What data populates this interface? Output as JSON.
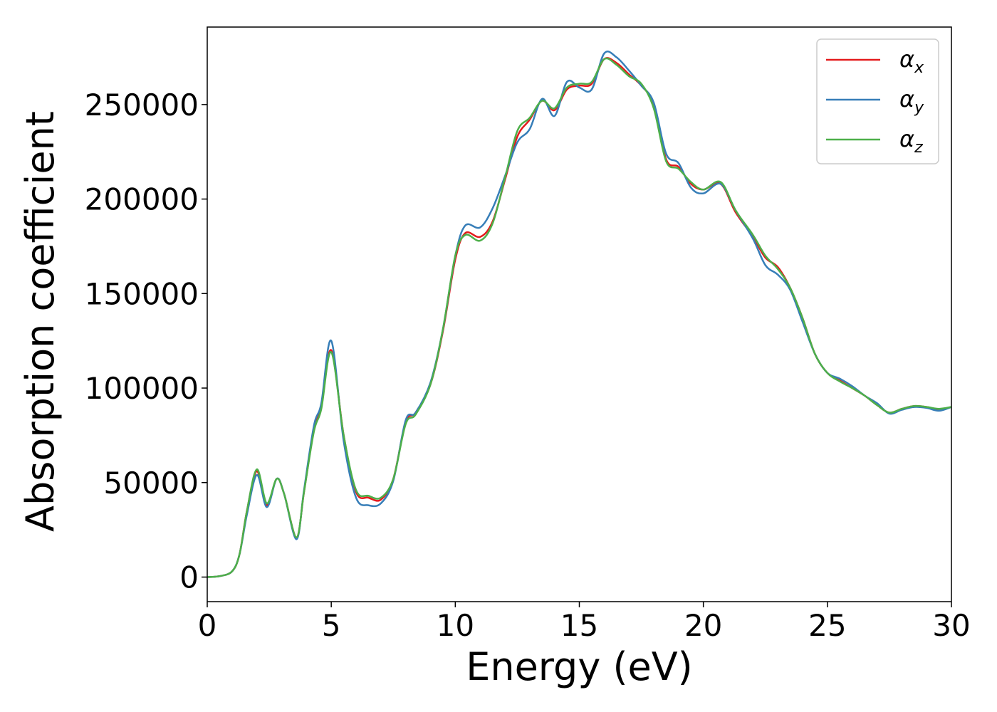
{
  "chart_data": {
    "type": "line",
    "title": "",
    "xlabel": "Energy (eV)",
    "ylabel": "Absorption coefficient",
    "xlim": [
      0,
      30
    ],
    "ylim": [
      -13000,
      291000
    ],
    "xticks": [
      0,
      5,
      10,
      15,
      20,
      25,
      30
    ],
    "xtick_labels": [
      "0",
      "5",
      "10",
      "15",
      "20",
      "25",
      "30"
    ],
    "yticks": [
      0,
      50000,
      100000,
      150000,
      200000,
      250000
    ],
    "ytick_labels": [
      "0",
      "50000",
      "100000",
      "150000",
      "200000",
      "250000"
    ],
    "grid": false,
    "legend_position": "top-right",
    "series": [
      {
        "name": "αx",
        "symbol": "α",
        "subscript": "x",
        "color": "#e41a1c",
        "points": [
          [
            0,
            0
          ],
          [
            0.5,
            500
          ],
          [
            1,
            3000
          ],
          [
            1.3,
            12000
          ],
          [
            1.6,
            35000
          ],
          [
            2,
            56000
          ],
          [
            2.4,
            38000
          ],
          [
            2.8,
            52000
          ],
          [
            3.1,
            44000
          ],
          [
            3.6,
            21000
          ],
          [
            3.9,
            45000
          ],
          [
            4.3,
            78000
          ],
          [
            4.6,
            90000
          ],
          [
            5,
            120000
          ],
          [
            5.5,
            75000
          ],
          [
            6,
            45000
          ],
          [
            6.5,
            42000
          ],
          [
            7,
            41000
          ],
          [
            7.5,
            52000
          ],
          [
            8,
            82000
          ],
          [
            8.4,
            87000
          ],
          [
            9,
            102000
          ],
          [
            9.5,
            130000
          ],
          [
            10,
            168000
          ],
          [
            10.4,
            182000
          ],
          [
            11,
            180000
          ],
          [
            11.5,
            188000
          ],
          [
            12,
            210000
          ],
          [
            12.5,
            233000
          ],
          [
            13,
            242000
          ],
          [
            13.5,
            252000
          ],
          [
            14,
            247000
          ],
          [
            14.5,
            258000
          ],
          [
            15,
            260000
          ],
          [
            15.5,
            261000
          ],
          [
            16,
            274000
          ],
          [
            16.5,
            272000
          ],
          [
            17,
            266000
          ],
          [
            17.5,
            260000
          ],
          [
            18,
            250000
          ],
          [
            18.5,
            221000
          ],
          [
            19,
            217000
          ],
          [
            19.5,
            208000
          ],
          [
            20,
            205000
          ],
          [
            20.7,
            208000
          ],
          [
            21.3,
            193000
          ],
          [
            22,
            180000
          ],
          [
            22.5,
            169000
          ],
          [
            23,
            164000
          ],
          [
            23.5,
            153000
          ],
          [
            24,
            137000
          ],
          [
            24.5,
            118000
          ],
          [
            25,
            108000
          ],
          [
            25.5,
            104000
          ],
          [
            26,
            100000
          ],
          [
            26.5,
            96000
          ],
          [
            27,
            91000
          ],
          [
            27.5,
            87000
          ],
          [
            28,
            89000
          ],
          [
            28.5,
            90500
          ],
          [
            29,
            90000
          ],
          [
            29.5,
            88500
          ],
          [
            30,
            90000
          ]
        ]
      },
      {
        "name": "αy",
        "symbol": "α",
        "subscript": "y",
        "color": "#377eb8",
        "points": [
          [
            0,
            0
          ],
          [
            0.5,
            500
          ],
          [
            1,
            3000
          ],
          [
            1.3,
            12000
          ],
          [
            1.6,
            33000
          ],
          [
            2,
            54000
          ],
          [
            2.4,
            37000
          ],
          [
            2.8,
            52000
          ],
          [
            3.1,
            44000
          ],
          [
            3.6,
            20000
          ],
          [
            3.9,
            46000
          ],
          [
            4.3,
            80000
          ],
          [
            4.6,
            92000
          ],
          [
            5,
            125000
          ],
          [
            5.5,
            72000
          ],
          [
            6,
            42000
          ],
          [
            6.5,
            38000
          ],
          [
            7,
            39000
          ],
          [
            7.5,
            51000
          ],
          [
            8,
            83000
          ],
          [
            8.4,
            87000
          ],
          [
            9,
            103000
          ],
          [
            9.5,
            131000
          ],
          [
            10,
            170000
          ],
          [
            10.4,
            186000
          ],
          [
            11,
            185000
          ],
          [
            11.5,
            195000
          ],
          [
            12,
            212000
          ],
          [
            12.5,
            230000
          ],
          [
            13,
            237000
          ],
          [
            13.5,
            253000
          ],
          [
            14,
            244000
          ],
          [
            14.5,
            262000
          ],
          [
            15,
            259000
          ],
          [
            15.5,
            258000
          ],
          [
            16,
            277000
          ],
          [
            16.5,
            275000
          ],
          [
            17,
            268000
          ],
          [
            17.5,
            260000
          ],
          [
            18,
            251000
          ],
          [
            18.5,
            224000
          ],
          [
            19,
            219000
          ],
          [
            19.5,
            206000
          ],
          [
            20,
            203000
          ],
          [
            20.7,
            208000
          ],
          [
            21.3,
            194000
          ],
          [
            22,
            179000
          ],
          [
            22.5,
            165000
          ],
          [
            23,
            160000
          ],
          [
            23.5,
            152000
          ],
          [
            24,
            135000
          ],
          [
            24.5,
            118000
          ],
          [
            25,
            108000
          ],
          [
            25.5,
            105000
          ],
          [
            26,
            101000
          ],
          [
            26.5,
            96000
          ],
          [
            27,
            92000
          ],
          [
            27.5,
            86500
          ],
          [
            28,
            88500
          ],
          [
            28.5,
            90000
          ],
          [
            29,
            89500
          ],
          [
            29.5,
            88000
          ],
          [
            30,
            90000
          ]
        ]
      },
      {
        "name": "αz",
        "symbol": "α",
        "subscript": "z",
        "color": "#4daf4a",
        "points": [
          [
            0,
            0
          ],
          [
            0.5,
            500
          ],
          [
            1,
            3000
          ],
          [
            1.3,
            12000
          ],
          [
            1.6,
            35000
          ],
          [
            2,
            57000
          ],
          [
            2.4,
            39000
          ],
          [
            2.8,
            52000
          ],
          [
            3.1,
            44000
          ],
          [
            3.6,
            21000
          ],
          [
            3.9,
            45000
          ],
          [
            4.3,
            77000
          ],
          [
            4.6,
            89000
          ],
          [
            5,
            119000
          ],
          [
            5.5,
            75000
          ],
          [
            6,
            46000
          ],
          [
            6.5,
            43000
          ],
          [
            7,
            42000
          ],
          [
            7.5,
            52000
          ],
          [
            8,
            81000
          ],
          [
            8.4,
            86000
          ],
          [
            9,
            102000
          ],
          [
            9.5,
            131000
          ],
          [
            10,
            170000
          ],
          [
            10.4,
            181000
          ],
          [
            11,
            178000
          ],
          [
            11.5,
            187000
          ],
          [
            12,
            211000
          ],
          [
            12.5,
            236000
          ],
          [
            13,
            243000
          ],
          [
            13.5,
            252000
          ],
          [
            14,
            248000
          ],
          [
            14.5,
            259000
          ],
          [
            15,
            261000
          ],
          [
            15.5,
            262000
          ],
          [
            16,
            274000
          ],
          [
            16.5,
            271000
          ],
          [
            17,
            265000
          ],
          [
            17.5,
            261000
          ],
          [
            18,
            248000
          ],
          [
            18.5,
            220000
          ],
          [
            19,
            216000
          ],
          [
            19.5,
            209000
          ],
          [
            20,
            205000
          ],
          [
            20.7,
            209000
          ],
          [
            21.3,
            194000
          ],
          [
            22,
            181000
          ],
          [
            22.5,
            170000
          ],
          [
            23,
            163000
          ],
          [
            23.5,
            153000
          ],
          [
            24,
            137000
          ],
          [
            24.5,
            118000
          ],
          [
            25,
            108000
          ],
          [
            25.5,
            103500
          ],
          [
            26,
            100000
          ],
          [
            26.5,
            96000
          ],
          [
            27,
            91000
          ],
          [
            27.5,
            87000
          ],
          [
            28,
            89000
          ],
          [
            28.5,
            90500
          ],
          [
            29,
            90000
          ],
          [
            29.5,
            89000
          ],
          [
            30,
            90000
          ]
        ]
      }
    ]
  }
}
